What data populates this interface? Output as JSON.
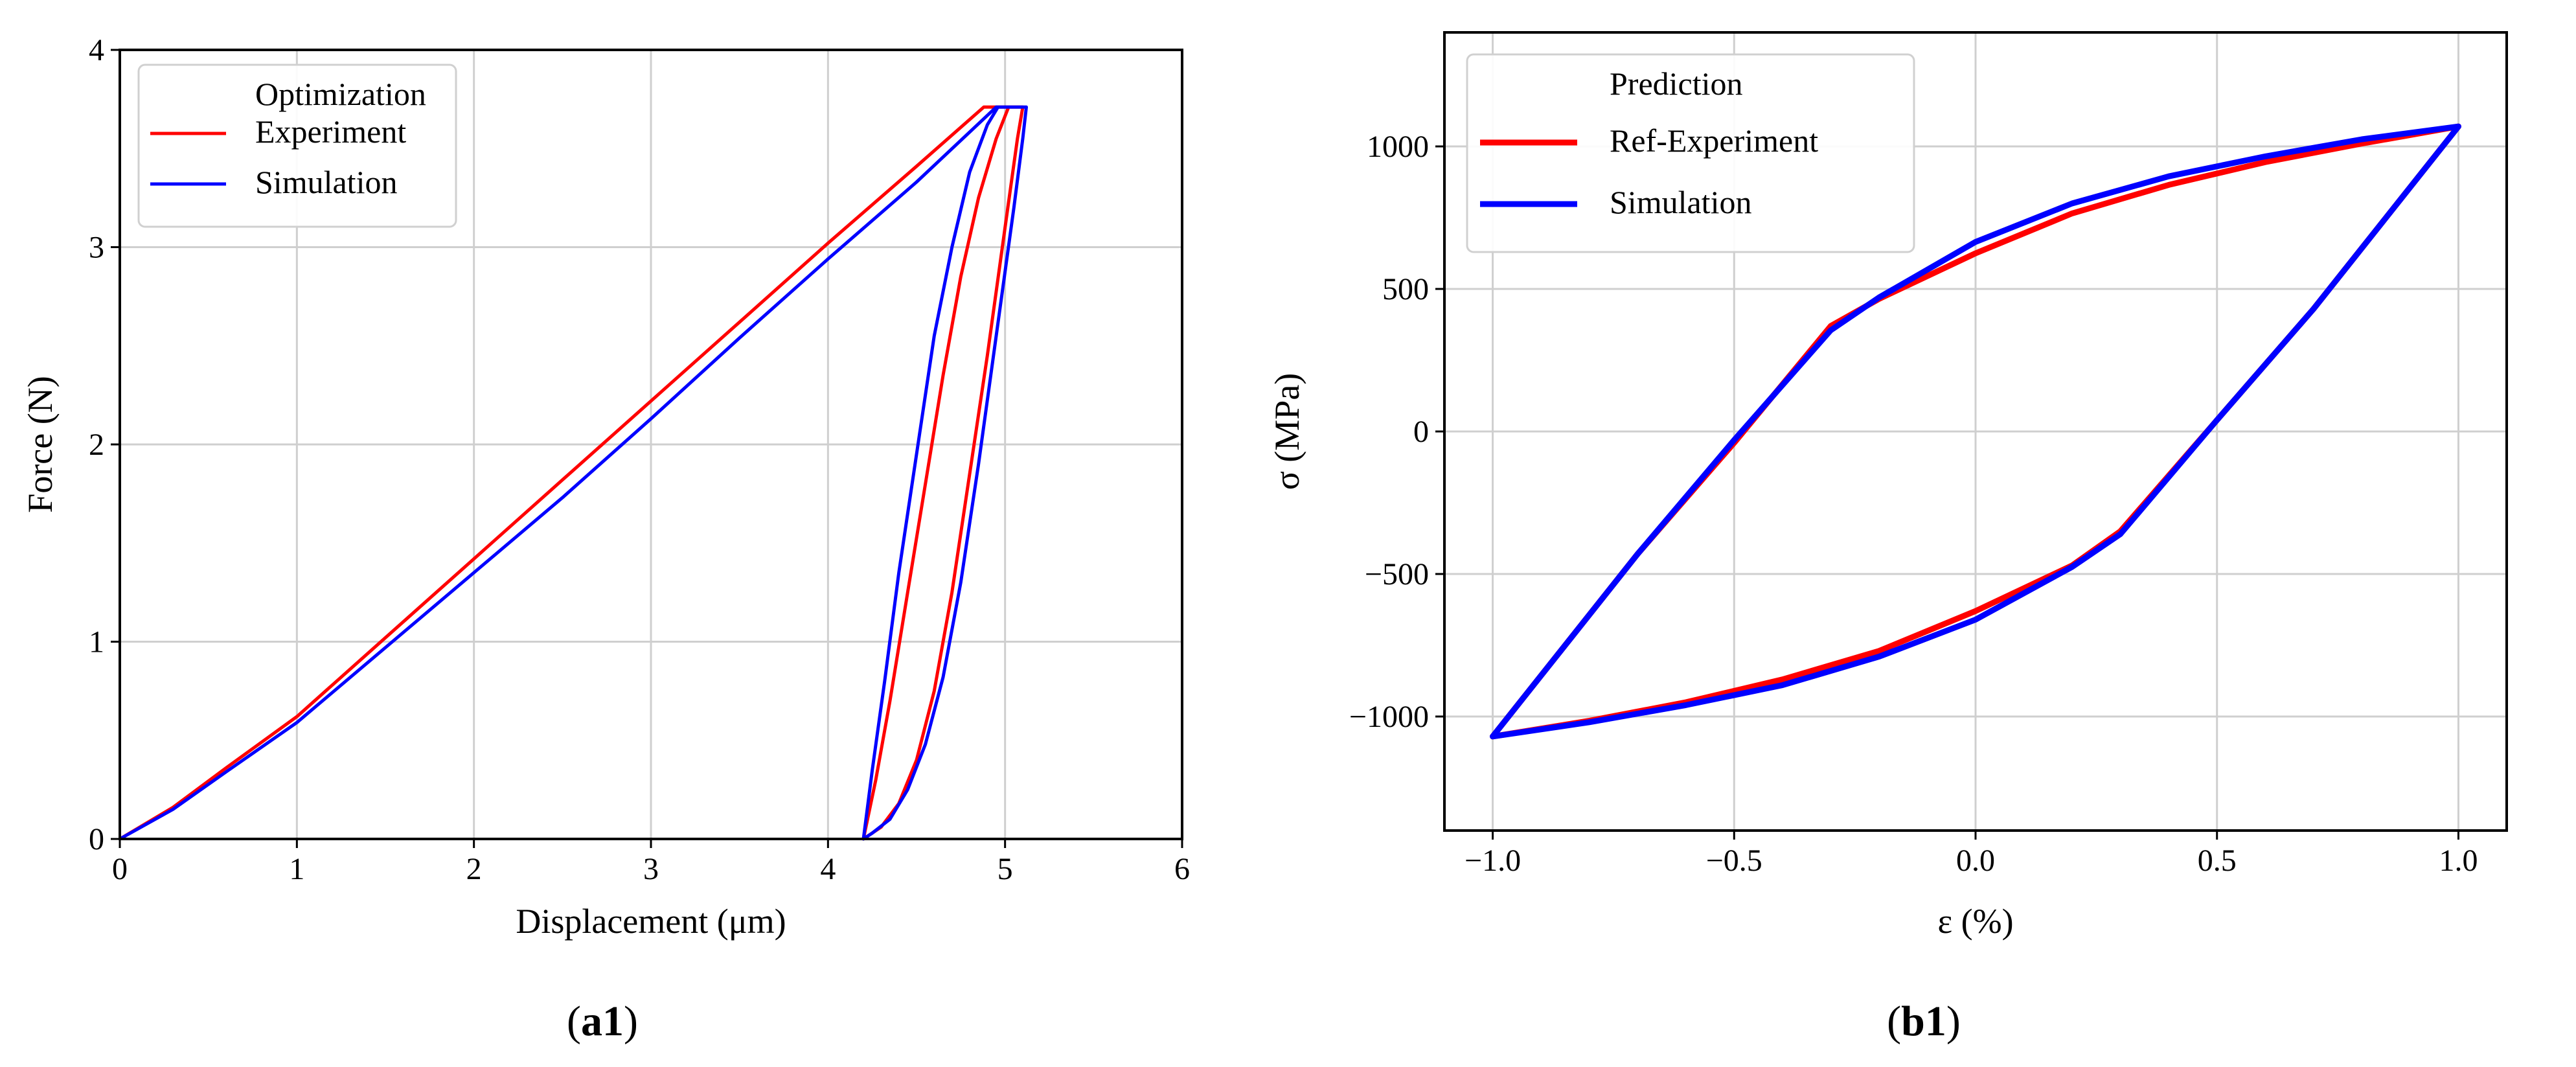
{
  "figure": {
    "panels": [
      {
        "caption_open": "(",
        "caption_bold": "a1",
        "caption_close": ")"
      },
      {
        "caption_open": "(",
        "caption_bold": "b1",
        "caption_close": ")"
      }
    ]
  },
  "chart_data": [
    {
      "type": "line",
      "title": "",
      "xlabel": "Displacement (μm)",
      "ylabel": "Force  (N)",
      "xlim": [
        0,
        6
      ],
      "ylim": [
        0,
        4
      ],
      "xticks": [
        0,
        1,
        2,
        3,
        4,
        5,
        6
      ],
      "xtick_labels": [
        "0",
        "1",
        "2",
        "3",
        "4",
        "5",
        "6"
      ],
      "yticks": [
        0,
        1,
        2,
        3,
        4
      ],
      "ytick_labels": [
        "0",
        "1",
        "2",
        "3",
        "4"
      ],
      "grid": true,
      "legend": {
        "title": "Optimization",
        "placement": "top-left"
      },
      "series": [
        {
          "name": "Experiment",
          "color": "#ff0000",
          "points": [
            [
              0,
              0
            ],
            [
              0.3,
              0.16
            ],
            [
              0.6,
              0.36
            ],
            [
              1.0,
              0.62
            ],
            [
              1.5,
              1.02
            ],
            [
              2.0,
              1.42
            ],
            [
              2.5,
              1.82
            ],
            [
              3.0,
              2.22
            ],
            [
              3.5,
              2.62
            ],
            [
              4.0,
              3.02
            ],
            [
              4.5,
              3.41
            ],
            [
              4.88,
              3.71
            ],
            [
              5.0,
              3.71
            ],
            [
              5.06,
              3.71
            ],
            [
              5.1,
              3.71
            ],
            [
              5.07,
              3.55
            ],
            [
              5.0,
              3.1
            ],
            [
              4.9,
              2.45
            ],
            [
              4.8,
              1.85
            ],
            [
              4.7,
              1.25
            ],
            [
              4.6,
              0.75
            ],
            [
              4.5,
              0.4
            ],
            [
              4.4,
              0.18
            ],
            [
              4.3,
              0.06
            ],
            [
              4.2,
              0
            ],
            [
              4.27,
              0.3
            ],
            [
              4.35,
              0.7
            ],
            [
              4.45,
              1.25
            ],
            [
              4.55,
              1.8
            ],
            [
              4.65,
              2.35
            ],
            [
              4.75,
              2.85
            ],
            [
              4.85,
              3.25
            ],
            [
              4.95,
              3.55
            ],
            [
              5.02,
              3.71
            ]
          ]
        },
        {
          "name": "Simulation",
          "color": "#0000ff",
          "points": [
            [
              0,
              0
            ],
            [
              0.3,
              0.15
            ],
            [
              0.6,
              0.34
            ],
            [
              1.0,
              0.59
            ],
            [
              1.5,
              0.97
            ],
            [
              2.0,
              1.35
            ],
            [
              2.5,
              1.73
            ],
            [
              3.0,
              2.13
            ],
            [
              3.5,
              2.54
            ],
            [
              4.0,
              2.94
            ],
            [
              4.5,
              3.33
            ],
            [
              4.95,
              3.71
            ],
            [
              5.05,
              3.71
            ],
            [
              5.12,
              3.71
            ],
            [
              5.1,
              3.55
            ],
            [
              5.05,
              3.2
            ],
            [
              4.95,
              2.55
            ],
            [
              4.85,
              1.9
            ],
            [
              4.75,
              1.3
            ],
            [
              4.65,
              0.82
            ],
            [
              4.55,
              0.48
            ],
            [
              4.45,
              0.25
            ],
            [
              4.35,
              0.1
            ],
            [
              4.25,
              0.03
            ],
            [
              4.2,
              0
            ],
            [
              4.25,
              0.35
            ],
            [
              4.32,
              0.8
            ],
            [
              4.4,
              1.35
            ],
            [
              4.5,
              1.95
            ],
            [
              4.6,
              2.55
            ],
            [
              4.7,
              3.0
            ],
            [
              4.8,
              3.38
            ],
            [
              4.9,
              3.62
            ],
            [
              4.96,
              3.71
            ]
          ]
        }
      ]
    },
    {
      "type": "line",
      "title": "",
      "xlabel": "ε (%)",
      "ylabel": "σ (MPa)",
      "xlim": [
        -1.1,
        1.1
      ],
      "ylim": [
        -1400,
        1400
      ],
      "xticks": [
        -1.0,
        -0.5,
        0.0,
        0.5,
        1.0
      ],
      "xtick_labels": [
        "−1.0",
        "−0.5",
        "0.0",
        "0.5",
        "1.0"
      ],
      "yticks": [
        -1000,
        -500,
        0,
        500,
        1000
      ],
      "ytick_labels": [
        "−1000",
        "−500",
        "0",
        "500",
        "1000"
      ],
      "grid": true,
      "legend": {
        "title": "Prediction",
        "placement": "top-left"
      },
      "series": [
        {
          "name": "Ref-Experiment",
          "color": "#ff0000",
          "points": [
            [
              -1.0,
              -1070
            ],
            [
              -0.8,
              -1015
            ],
            [
              -0.6,
              -950
            ],
            [
              -0.4,
              -870
            ],
            [
              -0.2,
              -770
            ],
            [
              0.0,
              -630
            ],
            [
              0.2,
              -470
            ],
            [
              0.3,
              -350
            ],
            [
              0.5,
              40
            ],
            [
              0.7,
              430
            ],
            [
              1.0,
              1070
            ],
            [
              0.8,
              1010
            ],
            [
              0.6,
              945
            ],
            [
              0.4,
              865
            ],
            [
              0.2,
              765
            ],
            [
              0.0,
              625
            ],
            [
              -0.2,
              465
            ],
            [
              -0.3,
              370
            ],
            [
              -0.5,
              -40
            ],
            [
              -0.7,
              -430
            ],
            [
              -1.0,
              -1070
            ]
          ]
        },
        {
          "name": "Simulation",
          "color": "#0000ff",
          "points": [
            [
              -1.0,
              -1070
            ],
            [
              -0.8,
              -1020
            ],
            [
              -0.6,
              -960
            ],
            [
              -0.4,
              -890
            ],
            [
              -0.2,
              -790
            ],
            [
              0.0,
              -660
            ],
            [
              0.2,
              -475
            ],
            [
              0.3,
              -360
            ],
            [
              0.5,
              40
            ],
            [
              0.7,
              430
            ],
            [
              1.0,
              1070
            ],
            [
              0.8,
              1025
            ],
            [
              0.6,
              965
            ],
            [
              0.4,
              895
            ],
            [
              0.2,
              800
            ],
            [
              0.0,
              665
            ],
            [
              -0.2,
              470
            ],
            [
              -0.3,
              355
            ],
            [
              -0.5,
              -30
            ],
            [
              -0.7,
              -430
            ],
            [
              -1.0,
              -1070
            ]
          ]
        }
      ]
    }
  ]
}
